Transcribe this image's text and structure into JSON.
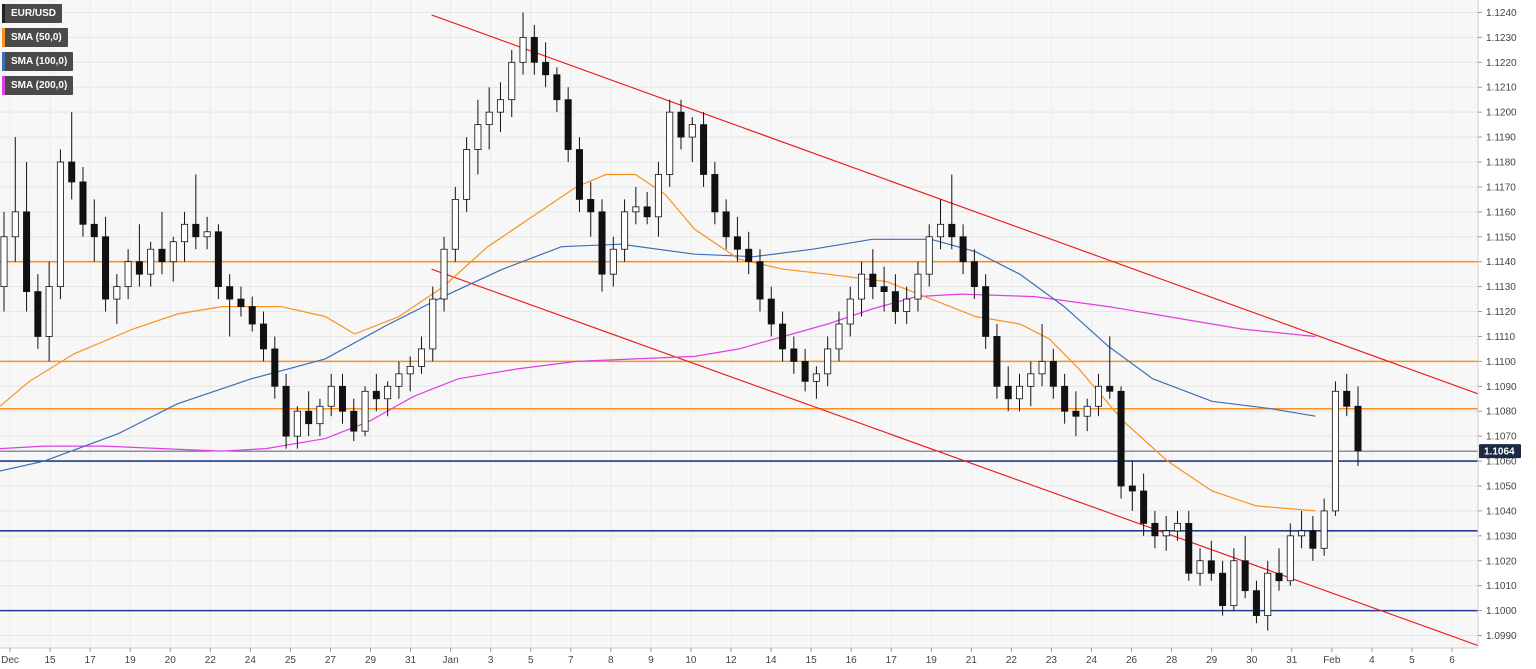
{
  "chart_data": {
    "type": "candlestick",
    "symbol": "EUR/USD",
    "ylim": [
      1.0985,
      1.1245
    ],
    "y_ticks": [
      "1.0990",
      "1.1000",
      "1.1010",
      "1.1020",
      "1.1030",
      "1.1040",
      "1.1050",
      "1.1060",
      "1.1070",
      "1.1080",
      "1.1090",
      "1.1100",
      "1.1110",
      "1.1120",
      "1.1130",
      "1.1140",
      "1.1150",
      "1.1160",
      "1.1170",
      "1.1180",
      "1.1190",
      "1.1200",
      "1.1210",
      "1.1220",
      "1.1230",
      "1.1240"
    ],
    "x_ticks": [
      "Dec",
      "15",
      "17",
      "19",
      "20",
      "22",
      "24",
      "25",
      "27",
      "29",
      "31",
      "Jan",
      "3",
      "5",
      "7",
      "8",
      "9",
      "10",
      "12",
      "14",
      "15",
      "16",
      "17",
      "19",
      "21",
      "22",
      "23",
      "24",
      "26",
      "28",
      "29",
      "30",
      "31",
      "Feb",
      "4",
      "5",
      "6"
    ],
    "last_price": "1.1064",
    "legend": [
      {
        "label": "EUR/USD",
        "color": "#222222"
      },
      {
        "label": "SMA (50,0)",
        "color": "#f7931e"
      },
      {
        "label": "SMA (100,0)",
        "color": "#3b6fb6"
      },
      {
        "label": "SMA (200,0)",
        "color": "#e040e0"
      }
    ],
    "horizontal_levels": [
      {
        "value": 1.114,
        "color": "#f7931e"
      },
      {
        "value": 1.11,
        "color": "#f7931e"
      },
      {
        "value": 1.1081,
        "color": "#f7931e"
      },
      {
        "value": 1.106,
        "color": "#1f3f8f"
      },
      {
        "value": 1.1032,
        "color": "#1f3f8f"
      },
      {
        "value": 1.1,
        "color": "#1f3f8f"
      }
    ],
    "trendlines": [
      {
        "from": [
          0.292,
          1.1239
        ],
        "to": [
          1.0,
          1.1087
        ],
        "color": "#ee2222"
      },
      {
        "from": [
          0.292,
          1.1137
        ],
        "to": [
          1.0,
          1.0986
        ],
        "color": "#ee2222"
      }
    ],
    "sma50": [
      [
        0.0,
        1.1082
      ],
      [
        0.02,
        1.1092
      ],
      [
        0.05,
        1.1103
      ],
      [
        0.09,
        1.1113
      ],
      [
        0.12,
        1.1119
      ],
      [
        0.15,
        1.1122
      ],
      [
        0.19,
        1.1122
      ],
      [
        0.22,
        1.1118
      ],
      [
        0.24,
        1.1111
      ],
      [
        0.27,
        1.1118
      ],
      [
        0.3,
        1.113
      ],
      [
        0.33,
        1.1146
      ],
      [
        0.36,
        1.1158
      ],
      [
        0.39,
        1.117
      ],
      [
        0.41,
        1.1175
      ],
      [
        0.43,
        1.1175
      ],
      [
        0.45,
        1.1167
      ],
      [
        0.47,
        1.1153
      ],
      [
        0.5,
        1.1141
      ],
      [
        0.53,
        1.1137
      ],
      [
        0.56,
        1.1135
      ],
      [
        0.6,
        1.1132
      ],
      [
        0.63,
        1.1125
      ],
      [
        0.66,
        1.1118
      ],
      [
        0.69,
        1.1115
      ],
      [
        0.71,
        1.1109
      ],
      [
        0.73,
        1.1097
      ],
      [
        0.76,
        1.1076
      ],
      [
        0.79,
        1.106
      ],
      [
        0.82,
        1.1048
      ],
      [
        0.85,
        1.1042
      ],
      [
        0.87,
        1.1041
      ],
      [
        0.89,
        1.104
      ]
    ],
    "sma100": [
      [
        0.0,
        1.1056
      ],
      [
        0.03,
        1.106
      ],
      [
        0.08,
        1.1071
      ],
      [
        0.12,
        1.1083
      ],
      [
        0.17,
        1.1093
      ],
      [
        0.22,
        1.1101
      ],
      [
        0.26,
        1.1114
      ],
      [
        0.3,
        1.1126
      ],
      [
        0.34,
        1.1137
      ],
      [
        0.38,
        1.1146
      ],
      [
        0.42,
        1.1147
      ],
      [
        0.47,
        1.1143
      ],
      [
        0.51,
        1.1142
      ],
      [
        0.55,
        1.1145
      ],
      [
        0.59,
        1.1149
      ],
      [
        0.63,
        1.1149
      ],
      [
        0.66,
        1.1144
      ],
      [
        0.69,
        1.1135
      ],
      [
        0.72,
        1.1122
      ],
      [
        0.75,
        1.1106
      ],
      [
        0.78,
        1.1093
      ],
      [
        0.82,
        1.1084
      ],
      [
        0.86,
        1.1081
      ],
      [
        0.89,
        1.1078
      ]
    ],
    "sma200": [
      [
        0.0,
        1.1065
      ],
      [
        0.03,
        1.1066
      ],
      [
        0.07,
        1.1066
      ],
      [
        0.11,
        1.1065
      ],
      [
        0.15,
        1.1064
      ],
      [
        0.18,
        1.1065
      ],
      [
        0.22,
        1.1069
      ],
      [
        0.25,
        1.1076
      ],
      [
        0.28,
        1.1086
      ],
      [
        0.31,
        1.1093
      ],
      [
        0.35,
        1.1097
      ],
      [
        0.39,
        1.11
      ],
      [
        0.43,
        1.1101
      ],
      [
        0.47,
        1.1102
      ],
      [
        0.5,
        1.1105
      ],
      [
        0.53,
        1.111
      ],
      [
        0.56,
        1.1115
      ],
      [
        0.59,
        1.1121
      ],
      [
        0.62,
        1.1126
      ],
      [
        0.65,
        1.1127
      ],
      [
        0.7,
        1.1126
      ],
      [
        0.75,
        1.1122
      ],
      [
        0.79,
        1.1118
      ],
      [
        0.84,
        1.1113
      ],
      [
        0.89,
        1.111
      ]
    ],
    "candles_ohlc": [
      [
        1.113,
        1.116,
        1.112,
        1.115
      ],
      [
        1.115,
        1.119,
        1.114,
        1.116
      ],
      [
        1.116,
        1.118,
        1.112,
        1.1128
      ],
      [
        1.1128,
        1.1135,
        1.1105,
        1.111
      ],
      [
        1.111,
        1.114,
        1.11,
        1.113
      ],
      [
        1.113,
        1.1185,
        1.1125,
        1.118
      ],
      [
        1.118,
        1.12,
        1.1165,
        1.1172
      ],
      [
        1.1172,
        1.1178,
        1.115,
        1.1155
      ],
      [
        1.1155,
        1.1165,
        1.114,
        1.115
      ],
      [
        1.115,
        1.1158,
        1.112,
        1.1125
      ],
      [
        1.1125,
        1.1135,
        1.1115,
        1.113
      ],
      [
        1.113,
        1.1145,
        1.1125,
        1.114
      ],
      [
        1.114,
        1.1155,
        1.113,
        1.1135
      ],
      [
        1.1135,
        1.1148,
        1.113,
        1.1145
      ],
      [
        1.1145,
        1.116,
        1.1135,
        1.114
      ],
      [
        1.114,
        1.115,
        1.1132,
        1.1148
      ],
      [
        1.1148,
        1.116,
        1.114,
        1.1155
      ],
      [
        1.1155,
        1.1175,
        1.1145,
        1.115
      ],
      [
        1.115,
        1.1158,
        1.1145,
        1.1152
      ],
      [
        1.1152,
        1.1155,
        1.1125,
        1.113
      ],
      [
        1.113,
        1.1135,
        1.111,
        1.1125
      ],
      [
        1.1125,
        1.113,
        1.1118,
        1.1122
      ],
      [
        1.1122,
        1.1126,
        1.1112,
        1.1115
      ],
      [
        1.1115,
        1.112,
        1.11,
        1.1105
      ],
      [
        1.1105,
        1.111,
        1.1085,
        1.109
      ],
      [
        1.109,
        1.1095,
        1.1065,
        1.107
      ],
      [
        1.107,
        1.1082,
        1.1065,
        1.108
      ],
      [
        1.108,
        1.1088,
        1.107,
        1.1075
      ],
      [
        1.1075,
        1.1085,
        1.107,
        1.1082
      ],
      [
        1.1082,
        1.1095,
        1.1078,
        1.109
      ],
      [
        1.109,
        1.1095,
        1.1075,
        1.108
      ],
      [
        1.108,
        1.1085,
        1.1068,
        1.1072
      ],
      [
        1.1072,
        1.109,
        1.107,
        1.1088
      ],
      [
        1.1088,
        1.1095,
        1.108,
        1.1085
      ],
      [
        1.1085,
        1.1092,
        1.1078,
        1.109
      ],
      [
        1.109,
        1.11,
        1.1085,
        1.1095
      ],
      [
        1.1095,
        1.1102,
        1.1088,
        1.1098
      ],
      [
        1.1098,
        1.111,
        1.1095,
        1.1105
      ],
      [
        1.1105,
        1.113,
        1.11,
        1.1125
      ],
      [
        1.1125,
        1.115,
        1.112,
        1.1145
      ],
      [
        1.1145,
        1.117,
        1.114,
        1.1165
      ],
      [
        1.1165,
        1.119,
        1.116,
        1.1185
      ],
      [
        1.1185,
        1.1205,
        1.1175,
        1.1195
      ],
      [
        1.1195,
        1.121,
        1.1185,
        1.12
      ],
      [
        1.12,
        1.1212,
        1.1192,
        1.1205
      ],
      [
        1.1205,
        1.1225,
        1.1198,
        1.122
      ],
      [
        1.122,
        1.124,
        1.1215,
        1.123
      ],
      [
        1.123,
        1.1235,
        1.1215,
        1.122
      ],
      [
        1.122,
        1.1228,
        1.121,
        1.1215
      ],
      [
        1.1215,
        1.1218,
        1.12,
        1.1205
      ],
      [
        1.1205,
        1.121,
        1.118,
        1.1185
      ],
      [
        1.1185,
        1.119,
        1.116,
        1.1165
      ],
      [
        1.1165,
        1.1172,
        1.115,
        1.116
      ],
      [
        1.116,
        1.1165,
        1.1128,
        1.1135
      ],
      [
        1.1135,
        1.115,
        1.113,
        1.1145
      ],
      [
        1.1145,
        1.1165,
        1.114,
        1.116
      ],
      [
        1.116,
        1.117,
        1.1155,
        1.1162
      ],
      [
        1.1162,
        1.1168,
        1.1155,
        1.1158
      ],
      [
        1.1158,
        1.118,
        1.115,
        1.1175
      ],
      [
        1.1175,
        1.1205,
        1.117,
        1.12
      ],
      [
        1.12,
        1.1205,
        1.1185,
        1.119
      ],
      [
        1.119,
        1.1198,
        1.118,
        1.1195
      ],
      [
        1.1195,
        1.12,
        1.117,
        1.1175
      ],
      [
        1.1175,
        1.118,
        1.1155,
        1.116
      ],
      [
        1.116,
        1.1165,
        1.1145,
        1.115
      ],
      [
        1.115,
        1.1158,
        1.114,
        1.1145
      ],
      [
        1.1145,
        1.1152,
        1.1135,
        1.114
      ],
      [
        1.114,
        1.1145,
        1.112,
        1.1125
      ],
      [
        1.1125,
        1.113,
        1.111,
        1.1115
      ],
      [
        1.1115,
        1.112,
        1.11,
        1.1105
      ],
      [
        1.1105,
        1.111,
        1.1095,
        1.11
      ],
      [
        1.11,
        1.1105,
        1.1088,
        1.1092
      ],
      [
        1.1092,
        1.1098,
        1.1085,
        1.1095
      ],
      [
        1.1095,
        1.111,
        1.109,
        1.1105
      ],
      [
        1.1105,
        1.112,
        1.11,
        1.1115
      ],
      [
        1.1115,
        1.113,
        1.111,
        1.1125
      ],
      [
        1.1125,
        1.114,
        1.1118,
        1.1135
      ],
      [
        1.1135,
        1.1145,
        1.1125,
        1.113
      ],
      [
        1.113,
        1.1138,
        1.112,
        1.1128
      ],
      [
        1.1128,
        1.1135,
        1.1115,
        1.112
      ],
      [
        1.112,
        1.113,
        1.1115,
        1.1125
      ],
      [
        1.1125,
        1.114,
        1.112,
        1.1135
      ],
      [
        1.1135,
        1.1155,
        1.113,
        1.115
      ],
      [
        1.115,
        1.1165,
        1.1145,
        1.1155
      ],
      [
        1.1155,
        1.1175,
        1.1145,
        1.115
      ],
      [
        1.115,
        1.1155,
        1.1135,
        1.114
      ],
      [
        1.114,
        1.1145,
        1.1125,
        1.113
      ],
      [
        1.113,
        1.1135,
        1.1105,
        1.111
      ],
      [
        1.111,
        1.1115,
        1.1085,
        1.109
      ],
      [
        1.109,
        1.1098,
        1.108,
        1.1085
      ],
      [
        1.1085,
        1.1095,
        1.108,
        1.109
      ],
      [
        1.109,
        1.11,
        1.1082,
        1.1095
      ],
      [
        1.1095,
        1.1115,
        1.109,
        1.11
      ],
      [
        1.11,
        1.1105,
        1.1085,
        1.109
      ],
      [
        1.109,
        1.1095,
        1.1075,
        1.108
      ],
      [
        1.108,
        1.1088,
        1.107,
        1.1078
      ],
      [
        1.1078,
        1.1085,
        1.1072,
        1.1082
      ],
      [
        1.1082,
        1.1095,
        1.1078,
        1.109
      ],
      [
        1.109,
        1.111,
        1.1085,
        1.1088
      ],
      [
        1.1088,
        1.109,
        1.1045,
        1.105
      ],
      [
        1.105,
        1.106,
        1.104,
        1.1048
      ],
      [
        1.1048,
        1.1055,
        1.103,
        1.1035
      ],
      [
        1.1035,
        1.104,
        1.1025,
        1.103
      ],
      [
        1.103,
        1.1038,
        1.1024,
        1.1032
      ],
      [
        1.1032,
        1.104,
        1.1028,
        1.1035
      ],
      [
        1.1035,
        1.104,
        1.1012,
        1.1015
      ],
      [
        1.1015,
        1.1025,
        1.101,
        1.102
      ],
      [
        1.102,
        1.1028,
        1.1012,
        1.1015
      ],
      [
        1.1015,
        1.102,
        1.0998,
        1.1002
      ],
      [
        1.1002,
        1.1025,
        1.1,
        1.102
      ],
      [
        1.102,
        1.103,
        1.1005,
        1.1008
      ],
      [
        1.1008,
        1.1012,
        1.0995,
        1.0998
      ],
      [
        1.0998,
        1.102,
        1.0992,
        1.1015
      ],
      [
        1.1015,
        1.1025,
        1.1008,
        1.1012
      ],
      [
        1.1012,
        1.1035,
        1.101,
        1.103
      ],
      [
        1.103,
        1.104,
        1.1025,
        1.1032
      ],
      [
        1.1032,
        1.1038,
        1.102,
        1.1025
      ],
      [
        1.1025,
        1.1045,
        1.1022,
        1.104
      ],
      [
        1.104,
        1.1092,
        1.1038,
        1.1088
      ],
      [
        1.1088,
        1.1095,
        1.1078,
        1.1082
      ],
      [
        1.1082,
        1.109,
        1.1058,
        1.1064
      ]
    ]
  }
}
